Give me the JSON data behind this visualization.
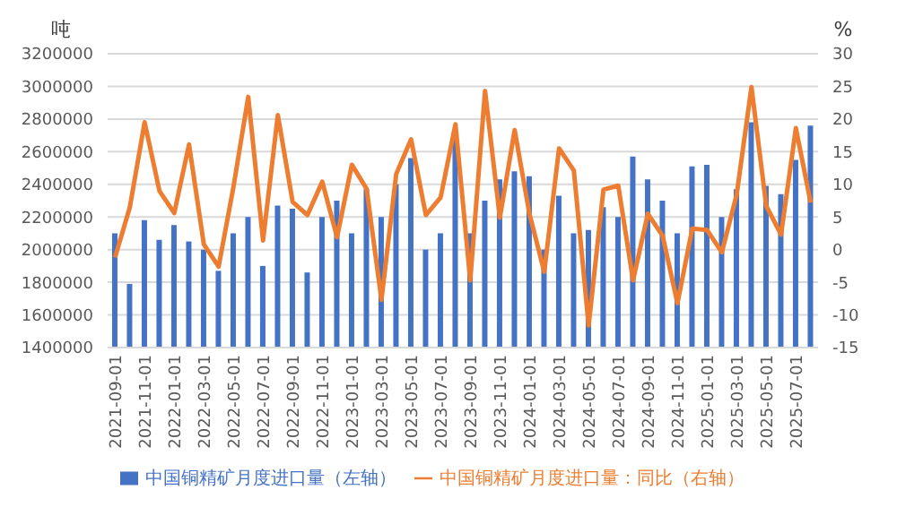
{
  "chart_data": {
    "type": "bar",
    "ylabel": "吨",
    "y2label": "%",
    "categories": [
      "2021-09-01",
      null,
      "2021-11-01",
      null,
      "2022-01-01",
      null,
      "2022-03-01",
      null,
      "2022-05-01",
      null,
      "2022-07-01",
      null,
      "2022-09-01",
      null,
      "2022-11-01",
      null,
      "2023-01-01",
      null,
      "2023-03-01",
      null,
      "2023-05-01",
      null,
      "2023-07-01",
      null,
      "2023-09-01",
      null,
      "2023-11-01",
      null,
      "2024-01-01",
      null,
      "2024-03-01",
      null,
      "2024-05-01",
      null,
      "2024-07-01",
      null,
      "2024-09-01",
      null,
      "2024-11-01",
      null,
      "2025-01-01",
      null,
      "2025-03-01",
      null,
      "2025-05-01",
      null,
      "2025-07-01",
      null
    ],
    "series": [
      {
        "name": "中国铜精矿月度进口量（左轴）",
        "color": "#4472c4",
        "values": [
          2100000,
          1790000,
          2180000,
          2060000,
          2150000,
          2050000,
          2000000,
          1870000,
          2100000,
          2200000,
          1900000,
          2270000,
          2250000,
          1860000,
          2200000,
          2300000,
          2100000,
          2370000,
          2200000,
          2400000,
          2560000,
          2000000,
          2100000,
          2700000,
          2100000,
          2300000,
          2430000,
          2480000,
          2450000,
          2000000,
          2330000,
          2100000,
          2120000,
          2260000,
          2200000,
          2570000,
          2430000,
          2300000,
          2100000,
          2510000,
          2520000,
          2200000,
          2370000,
          2780000,
          2390000,
          2340000,
          2550000,
          2760000
        ]
      },
      {
        "name": "中国铜精矿月度进口量：同比（右轴）",
        "type": "line",
        "axis": "y2",
        "color": "#ed7d31",
        "values": [
          -1.2,
          6.5,
          19.5,
          9.0,
          5.6,
          16.1,
          0.8,
          -2.6,
          9.6,
          23.4,
          1.4,
          20.6,
          7.3,
          5.3,
          10.4,
          1.9,
          13.0,
          9.3,
          -7.7,
          11.6,
          16.9,
          5.3,
          8.0,
          19.2,
          -4.7,
          24.3,
          4.9,
          18.3,
          5.5,
          -3.4,
          15.5,
          12.1,
          -11.6,
          9.2,
          9.8,
          -4.7,
          5.5,
          2.1,
          -8.2,
          3.2,
          3.0,
          -0.4,
          8.4,
          24.9,
          6.7,
          2.3,
          18.6,
          7.2
        ]
      }
    ],
    "ylim": [
      1400000,
      3200000
    ],
    "yticks": [
      1400000,
      1600000,
      1800000,
      2000000,
      2200000,
      2400000,
      2600000,
      2800000,
      3000000,
      3200000
    ],
    "y2lim": [
      -15,
      30
    ],
    "y2ticks": [
      -15,
      -10,
      -5,
      0,
      5,
      10,
      15,
      20,
      25,
      30
    ],
    "grid": "y",
    "legend": "bottom",
    "marker": "none",
    "line_style": "solid"
  }
}
